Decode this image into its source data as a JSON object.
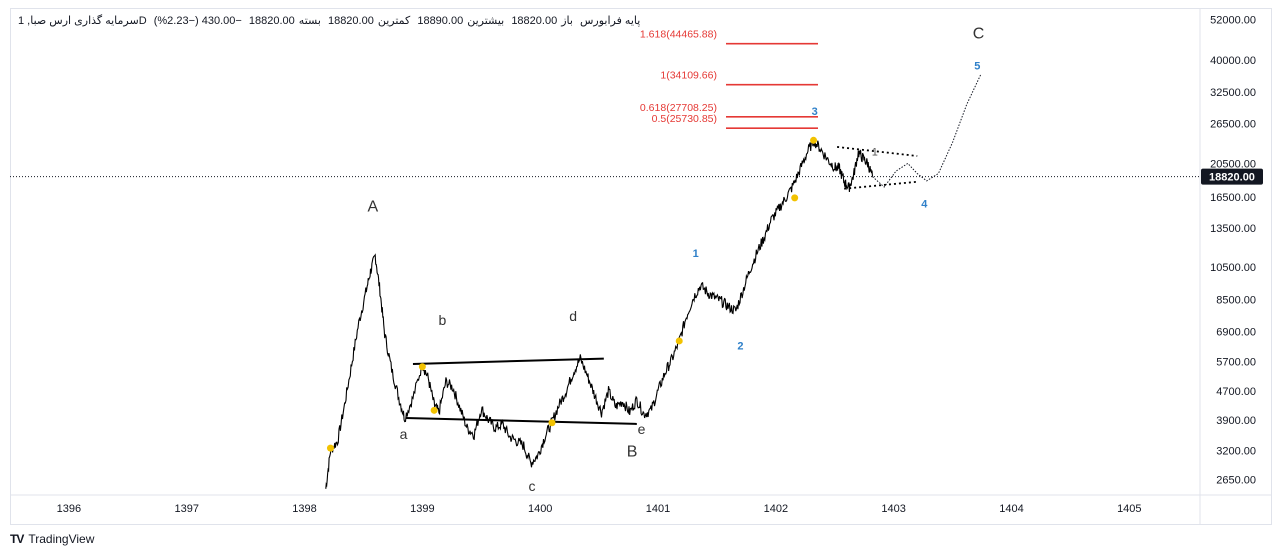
{
  "ticker": {
    "name": "سرمایه گذاری ارس صبا, 1D",
    "open_label": "باز",
    "open": "18820.00",
    "high_label": "بیشترین",
    "high": "18890.00",
    "low_label": "کمترین",
    "low": "18820.00",
    "close_label": "بسته",
    "close": "18820.00",
    "change": "−430.00 (−2.23%)",
    "extra": "پایه فرابورس"
  },
  "brand": {
    "name": "TradingView"
  },
  "colors": {
    "fib": "#e53935",
    "wave_num": "#2f80c9",
    "yellow_dot": "#f2c200",
    "badge": "#131722"
  },
  "current_price": "18820.00",
  "chart_data": {
    "type": "line",
    "x_ticks": [
      "1396",
      "1397",
      "1398",
      "1399",
      "1400",
      "1401",
      "1402",
      "1403",
      "1404",
      "1405"
    ],
    "y_ticks": [
      "52000.00",
      "40000.00",
      "32500.00",
      "26500.00",
      "20500.00",
      "16500.00",
      "13500.00",
      "10500.00",
      "8500.00",
      "6900.00",
      "5700.00",
      "4700.00",
      "3900.00",
      "3200.00",
      "2650.00"
    ],
    "y_scale": "log",
    "ylim": [
      2400,
      56000
    ],
    "xlim": [
      1395.5,
      1405.6
    ],
    "fib_levels": [
      {
        "label": "0.5(25730.85)",
        "value": 25730.85
      },
      {
        "label": "0.618(27708.25)",
        "value": 27708.25
      },
      {
        "label": "1(34109.66)",
        "value": 34109.66
      },
      {
        "label": "1.618(44465.88)",
        "value": 44465.88
      }
    ],
    "wave_labels_major": [
      {
        "text": "A",
        "x": 1398.58,
        "y": 15000
      },
      {
        "text": "B",
        "x": 1400.78,
        "y": 3080
      },
      {
        "text": "C",
        "x": 1403.72,
        "y": 46000
      }
    ],
    "wave_labels_minor": [
      {
        "text": "a",
        "x": 1398.84,
        "y": 3450
      },
      {
        "text": "b",
        "x": 1399.17,
        "y": 7200
      },
      {
        "text": "c",
        "x": 1399.93,
        "y": 2460
      },
      {
        "text": "d",
        "x": 1400.28,
        "y": 7400
      },
      {
        "text": "e",
        "x": 1400.86,
        "y": 3560
      }
    ],
    "wave_labels_impulse": [
      {
        "text": "1",
        "x": 1401.32,
        "y": 11200
      },
      {
        "text": "2",
        "x": 1401.7,
        "y": 6150
      },
      {
        "text": "3",
        "x": 1402.33,
        "y": 28000
      },
      {
        "text": "4",
        "x": 1403.26,
        "y": 15400
      },
      {
        "text": "5",
        "x": 1403.71,
        "y": 37600
      },
      {
        "text": "1",
        "x": 1402.84,
        "y": 21600
      }
    ],
    "price_path": [
      [
        1398.18,
        2500
      ],
      [
        1398.22,
        3200
      ],
      [
        1398.28,
        3400
      ],
      [
        1398.34,
        4300
      ],
      [
        1398.4,
        5600
      ],
      [
        1398.46,
        7300
      ],
      [
        1398.52,
        8900
      ],
      [
        1398.56,
        10200
      ],
      [
        1398.6,
        11300
      ],
      [
        1398.64,
        9000
      ],
      [
        1398.68,
        6800
      ],
      [
        1398.74,
        5400
      ],
      [
        1398.8,
        4500
      ],
      [
        1398.85,
        3950
      ],
      [
        1398.92,
        4500
      ],
      [
        1399.0,
        5600
      ],
      [
        1399.05,
        5100
      ],
      [
        1399.1,
        4300
      ],
      [
        1399.14,
        4100
      ],
      [
        1399.2,
        5000
      ],
      [
        1399.26,
        4800
      ],
      [
        1399.32,
        4200
      ],
      [
        1399.38,
        3700
      ],
      [
        1399.44,
        3550
      ],
      [
        1399.5,
        4200
      ],
      [
        1399.56,
        3900
      ],
      [
        1399.62,
        3700
      ],
      [
        1399.68,
        3800
      ],
      [
        1399.74,
        3500
      ],
      [
        1399.8,
        3400
      ],
      [
        1399.86,
        3300
      ],
      [
        1399.92,
        2950
      ],
      [
        1399.98,
        3100
      ],
      [
        1400.04,
        3500
      ],
      [
        1400.1,
        3850
      ],
      [
        1400.16,
        4300
      ],
      [
        1400.22,
        4700
      ],
      [
        1400.28,
        5300
      ],
      [
        1400.34,
        5800
      ],
      [
        1400.4,
        5200
      ],
      [
        1400.46,
        4600
      ],
      [
        1400.52,
        4100
      ],
      [
        1400.58,
        4700
      ],
      [
        1400.64,
        4250
      ],
      [
        1400.7,
        4400
      ],
      [
        1400.76,
        4100
      ],
      [
        1400.82,
        4450
      ],
      [
        1400.88,
        4050
      ],
      [
        1400.94,
        4150
      ],
      [
        1401.0,
        4700
      ],
      [
        1401.06,
        5300
      ],
      [
        1401.12,
        5800
      ],
      [
        1401.18,
        6500
      ],
      [
        1401.24,
        7600
      ],
      [
        1401.3,
        8600
      ],
      [
        1401.36,
        9300
      ],
      [
        1401.42,
        8900
      ],
      [
        1401.48,
        8600
      ],
      [
        1401.54,
        8400
      ],
      [
        1401.6,
        8100
      ],
      [
        1401.66,
        7900
      ],
      [
        1401.72,
        9000
      ],
      [
        1401.78,
        10300
      ],
      [
        1401.84,
        11500
      ],
      [
        1401.9,
        12700
      ],
      [
        1401.96,
        14200
      ],
      [
        1402.02,
        15200
      ],
      [
        1402.08,
        16300
      ],
      [
        1402.14,
        17600
      ],
      [
        1402.2,
        19500
      ],
      [
        1402.26,
        21800
      ],
      [
        1402.32,
        23800
      ],
      [
        1402.38,
        22500
      ],
      [
        1402.44,
        21000
      ],
      [
        1402.5,
        20000
      ],
      [
        1402.54,
        19800
      ],
      [
        1402.58,
        18200
      ],
      [
        1402.62,
        17500
      ],
      [
        1402.66,
        19000
      ],
      [
        1402.7,
        22000
      ],
      [
        1402.74,
        21200
      ],
      [
        1402.78,
        20500
      ],
      [
        1402.82,
        18820
      ]
    ],
    "projection_path": [
      [
        1402.82,
        18820
      ],
      [
        1402.92,
        17600
      ],
      [
        1403.02,
        19500
      ],
      [
        1403.12,
        20500
      ],
      [
        1403.2,
        19200
      ],
      [
        1403.28,
        18300
      ],
      [
        1403.38,
        19200
      ],
      [
        1403.5,
        23500
      ],
      [
        1403.62,
        30000
      ],
      [
        1403.74,
        36500
      ]
    ],
    "triangle_bc": {
      "upper": [
        [
          1398.92,
          5600
        ],
        [
          1400.54,
          5800
        ]
      ],
      "lower": [
        [
          1398.86,
          3950
        ],
        [
          1400.82,
          3800
        ]
      ]
    },
    "triangle_wave4": {
      "upper": [
        [
          1402.52,
          22800
        ],
        [
          1403.2,
          21500
        ]
      ],
      "lower": [
        [
          1402.58,
          17400
        ],
        [
          1403.2,
          18200
        ]
      ]
    },
    "yellow_points": [
      [
        1398.22,
        3250
      ],
      [
        1399.0,
        5500
      ],
      [
        1399.1,
        4150
      ],
      [
        1400.1,
        3830
      ],
      [
        1401.18,
        6500
      ],
      [
        1402.16,
        16400
      ],
      [
        1402.32,
        23800
      ]
    ]
  }
}
